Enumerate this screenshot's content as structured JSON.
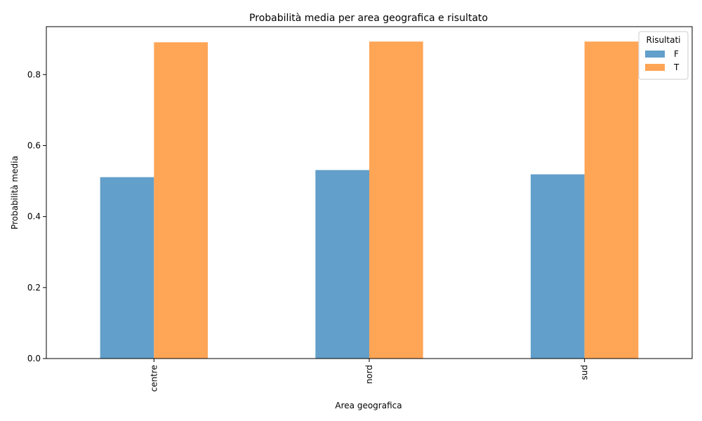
{
  "chart_data": {
    "type": "bar",
    "title": "Probabilità media per area geografica e risultato",
    "xlabel": "Area geografica",
    "ylabel": "Probabilità media",
    "categories": [
      "centre",
      "nord",
      "sud"
    ],
    "series": [
      {
        "name": "F",
        "values": [
          0.511,
          0.531,
          0.519
        ],
        "color": "#629fca"
      },
      {
        "name": "T",
        "values": [
          0.891,
          0.893,
          0.893
        ],
        "color": "#ffa556"
      }
    ],
    "ylim": [
      0,
      0.935
    ],
    "yticks": [
      0.0,
      0.2,
      0.4,
      0.6,
      0.8
    ],
    "ytick_labels": [
      "0.0",
      "0.2",
      "0.4",
      "0.6",
      "0.8"
    ],
    "legend": {
      "title": "Risultati",
      "placement": "top-right"
    },
    "grid": false
  }
}
